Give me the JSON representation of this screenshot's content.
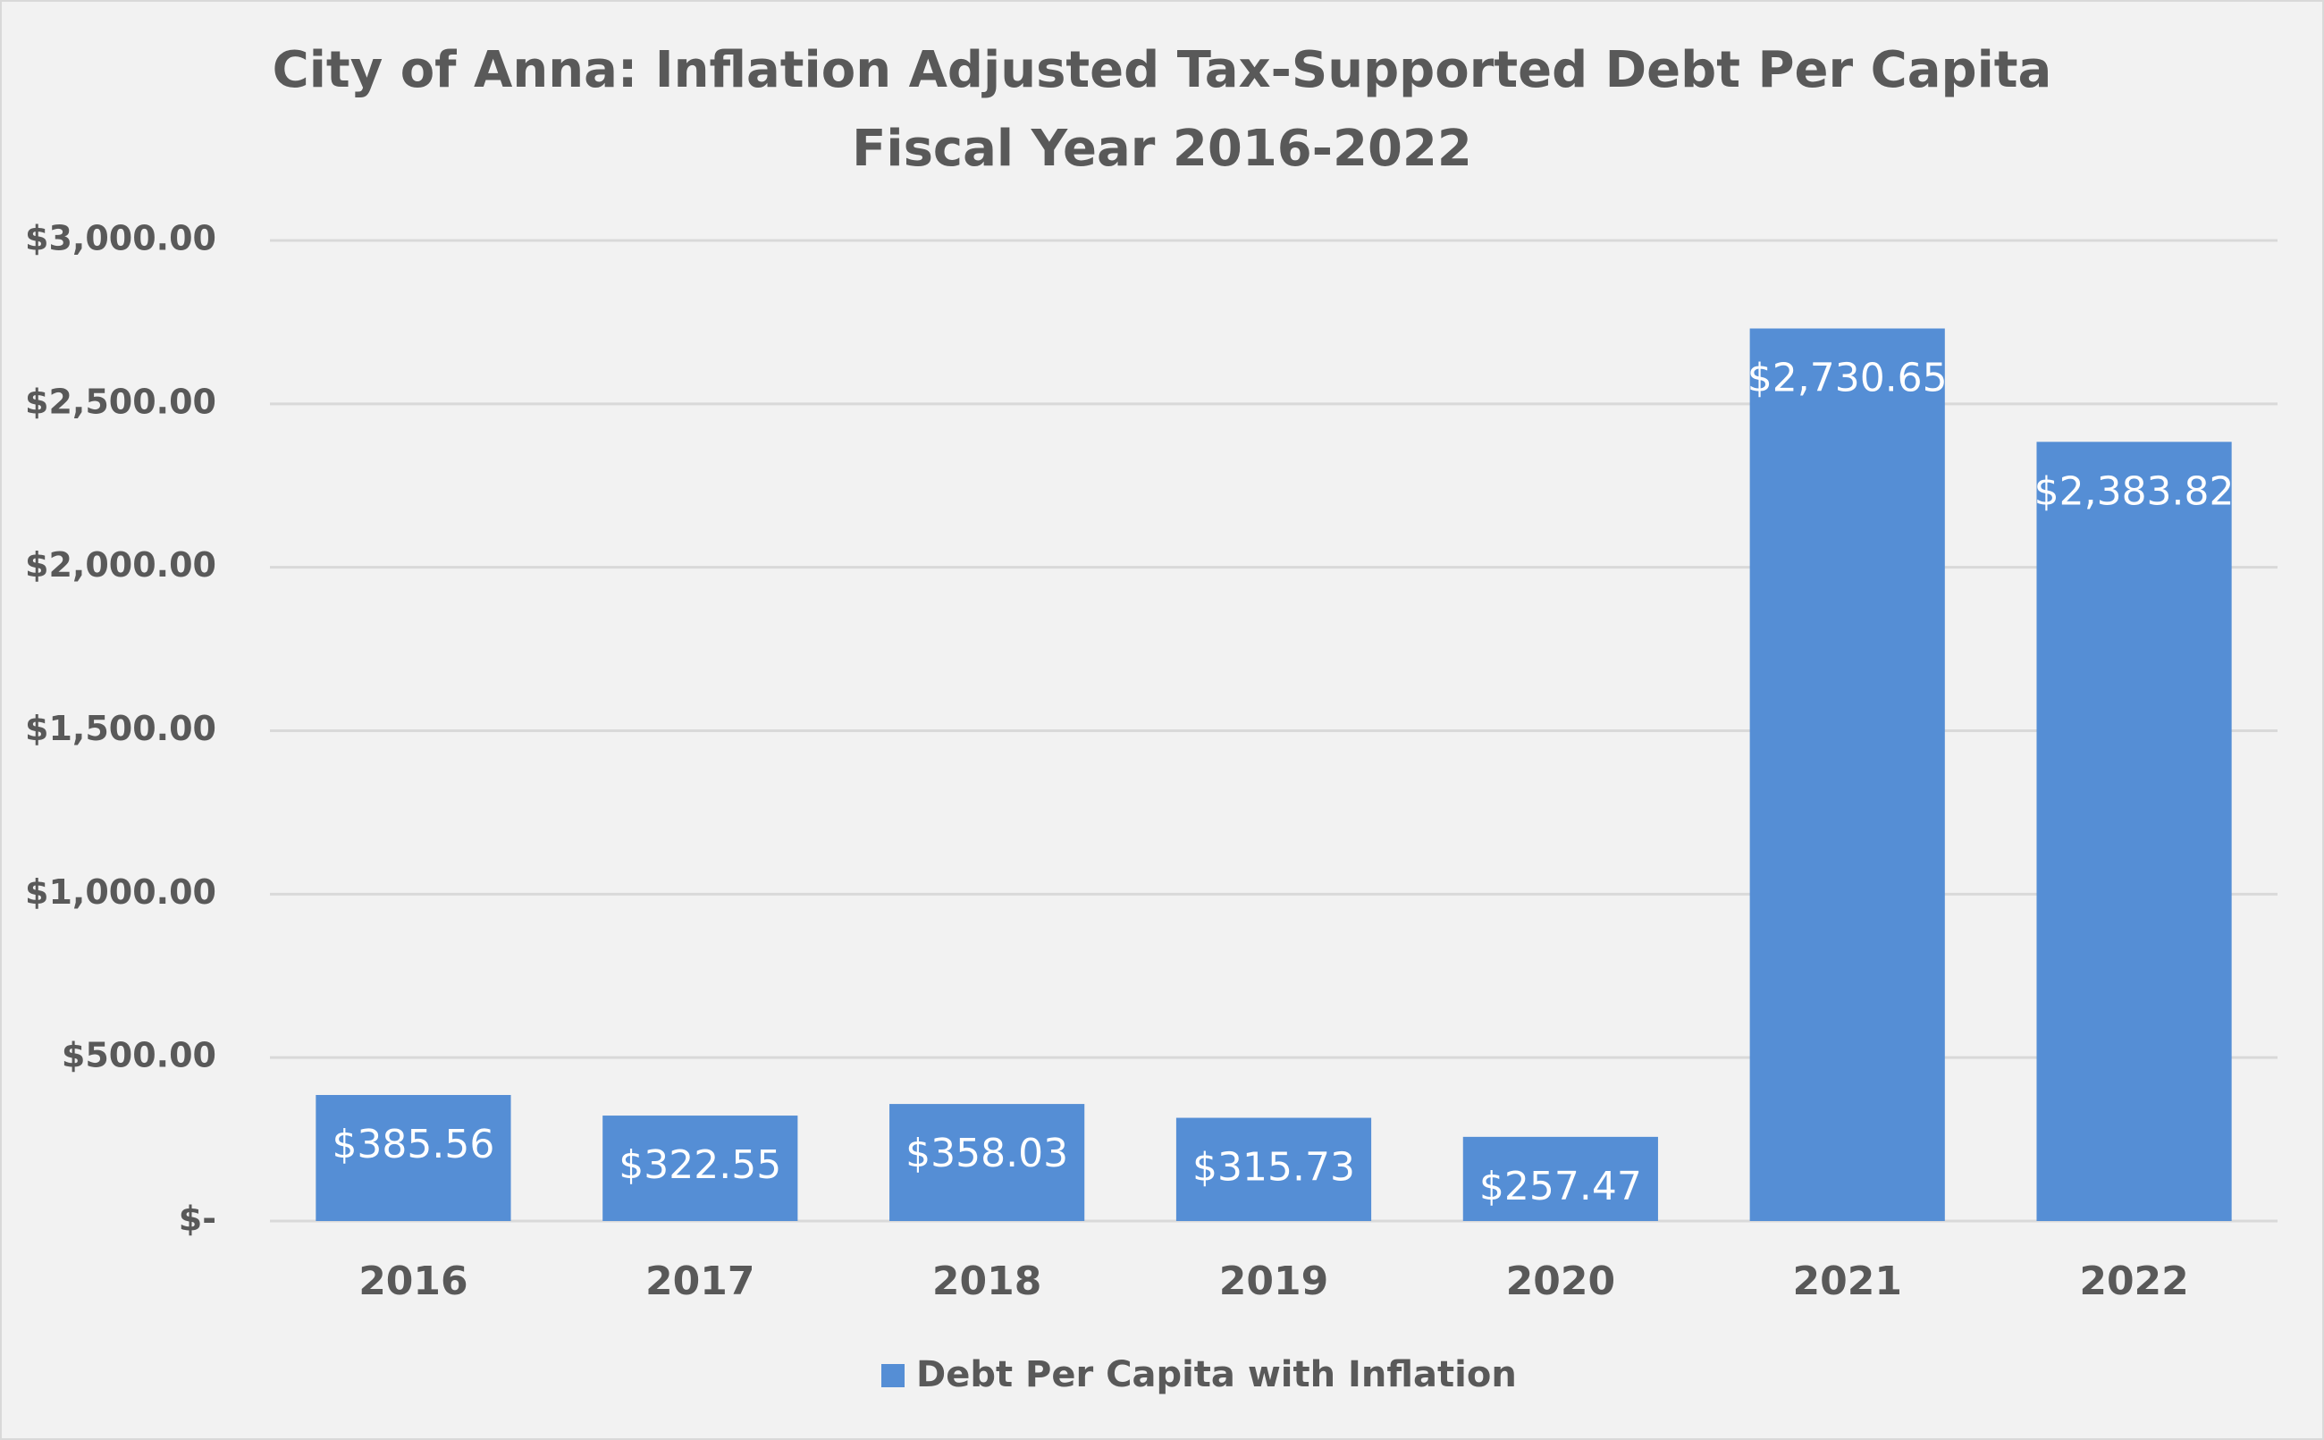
{
  "chart_data": {
    "type": "bar",
    "title": "City of Anna: Inflation Adjusted Tax-Supported Debt Per Capita",
    "subtitle": "Fiscal Year 2016-2022",
    "categories": [
      "2016",
      "2017",
      "2018",
      "2019",
      "2020",
      "2021",
      "2022"
    ],
    "series": [
      {
        "name": "Debt Per Capita with Inflation",
        "color": "#558ed5",
        "values": [
          385.56,
          322.55,
          358.03,
          315.73,
          257.47,
          2730.65,
          2383.82
        ],
        "value_labels": [
          "$385.56",
          "$322.55",
          "$358.03",
          "$315.73",
          "$257.47",
          "$2,730.65",
          "$2,383.82"
        ]
      }
    ],
    "ylim": [
      0,
      3000
    ],
    "yticks": [
      {
        "value": 0,
        "label": "$-"
      },
      {
        "value": 500,
        "label": "$500.00"
      },
      {
        "value": 1000,
        "label": "$1,000.00"
      },
      {
        "value": 1500,
        "label": "$1,500.00"
      },
      {
        "value": 2000,
        "label": "$2,000.00"
      },
      {
        "value": 2500,
        "label": "$2,500.00"
      },
      {
        "value": 3000,
        "label": "$3,000.00"
      }
    ],
    "grid": true,
    "legend": "bottom"
  }
}
